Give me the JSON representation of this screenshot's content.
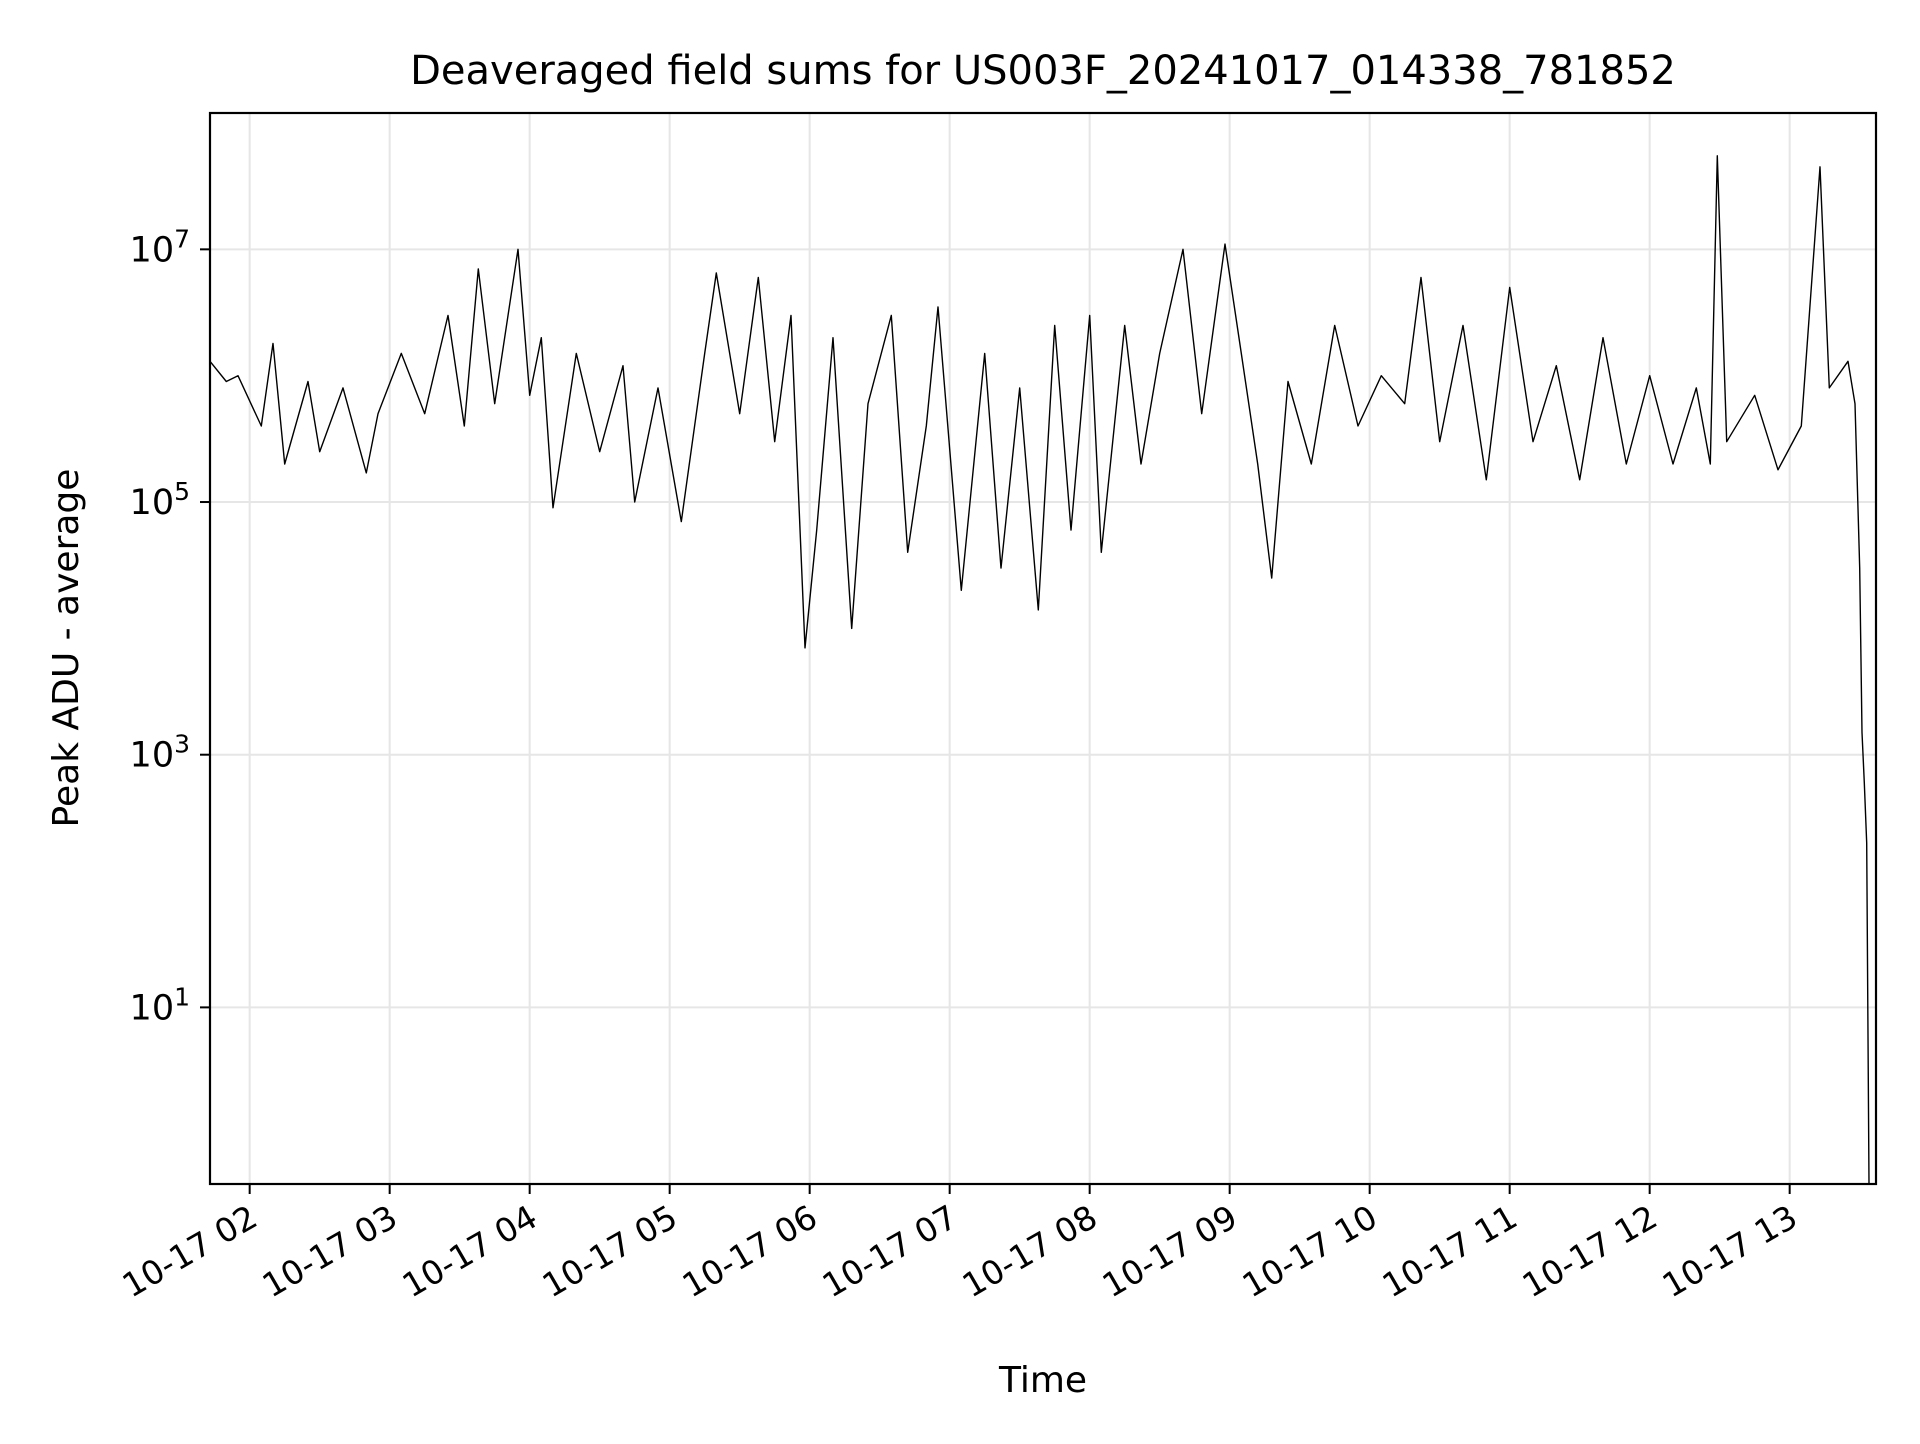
{
  "chart_data": {
    "type": "line",
    "title": "Deaveraged field sums for US003F_20241017_014338_781852",
    "xlabel": "Time",
    "ylabel": "Peak ADU - average",
    "yscale": "log",
    "ylim": [
      0.4,
      120000000
    ],
    "xlim": [
      "2024-10-17 01:43",
      "2024-10-17 13:37"
    ],
    "grid": true,
    "line_color": "#000000",
    "x_ticks": [
      {
        "value": "2024-10-17 02:00",
        "label": "10-17 02"
      },
      {
        "value": "2024-10-17 03:00",
        "label": "10-17 03"
      },
      {
        "value": "2024-10-17 04:00",
        "label": "10-17 04"
      },
      {
        "value": "2024-10-17 05:00",
        "label": "10-17 05"
      },
      {
        "value": "2024-10-17 06:00",
        "label": "10-17 06"
      },
      {
        "value": "2024-10-17 07:00",
        "label": "10-17 07"
      },
      {
        "value": "2024-10-17 08:00",
        "label": "10-17 08"
      },
      {
        "value": "2024-10-17 09:00",
        "label": "10-17 09"
      },
      {
        "value": "2024-10-17 10:00",
        "label": "10-17 10"
      },
      {
        "value": "2024-10-17 11:00",
        "label": "10-17 11"
      },
      {
        "value": "2024-10-17 12:00",
        "label": "10-17 12"
      },
      {
        "value": "2024-10-17 13:00",
        "label": "10-17 13"
      }
    ],
    "y_ticks": [
      {
        "value": 10,
        "base": "10",
        "exp": "1"
      },
      {
        "value": 1000,
        "base": "10",
        "exp": "3"
      },
      {
        "value": 100000,
        "base": "10",
        "exp": "5"
      },
      {
        "value": 10000000,
        "base": "10",
        "exp": "7"
      }
    ],
    "series": [
      {
        "points": [
          [
            "2024-10-17 01:43",
            1300000
          ],
          [
            "2024-10-17 01:50",
            900000
          ],
          [
            "2024-10-17 01:55",
            1000000
          ],
          [
            "2024-10-17 02:05",
            400000
          ],
          [
            "2024-10-17 02:10",
            1800000
          ],
          [
            "2024-10-17 02:15",
            200000
          ],
          [
            "2024-10-17 02:25",
            900000
          ],
          [
            "2024-10-17 02:30",
            250000
          ],
          [
            "2024-10-17 02:40",
            800000
          ],
          [
            "2024-10-17 02:50",
            170000
          ],
          [
            "2024-10-17 02:55",
            500000
          ],
          [
            "2024-10-17 03:05",
            1500000
          ],
          [
            "2024-10-17 03:15",
            500000
          ],
          [
            "2024-10-17 03:25",
            3000000
          ],
          [
            "2024-10-17 03:32",
            400000
          ],
          [
            "2024-10-17 03:38",
            7000000
          ],
          [
            "2024-10-17 03:45",
            600000
          ],
          [
            "2024-10-17 03:55",
            10000000
          ],
          [
            "2024-10-17 04:00",
            700000
          ],
          [
            "2024-10-17 04:05",
            2000000
          ],
          [
            "2024-10-17 04:10",
            90000
          ],
          [
            "2024-10-17 04:20",
            1500000
          ],
          [
            "2024-10-17 04:30",
            250000
          ],
          [
            "2024-10-17 04:40",
            1200000
          ],
          [
            "2024-10-17 04:45",
            100000
          ],
          [
            "2024-10-17 04:55",
            800000
          ],
          [
            "2024-10-17 05:05",
            70000
          ],
          [
            "2024-10-17 05:15",
            1500000
          ],
          [
            "2024-10-17 05:20",
            6500000
          ],
          [
            "2024-10-17 05:30",
            500000
          ],
          [
            "2024-10-17 05:38",
            6000000
          ],
          [
            "2024-10-17 05:45",
            300000
          ],
          [
            "2024-10-17 05:52",
            3000000
          ],
          [
            "2024-10-17 05:58",
            7000
          ],
          [
            "2024-10-17 06:03",
            60000
          ],
          [
            "2024-10-17 06:10",
            2000000
          ],
          [
            "2024-10-17 06:18",
            10000
          ],
          [
            "2024-10-17 06:25",
            600000
          ],
          [
            "2024-10-17 06:35",
            3000000
          ],
          [
            "2024-10-17 06:42",
            40000
          ],
          [
            "2024-10-17 06:50",
            400000
          ],
          [
            "2024-10-17 06:55",
            3500000
          ],
          [
            "2024-10-17 07:05",
            20000
          ],
          [
            "2024-10-17 07:15",
            1500000
          ],
          [
            "2024-10-17 07:22",
            30000
          ],
          [
            "2024-10-17 07:30",
            800000
          ],
          [
            "2024-10-17 07:38",
            14000
          ],
          [
            "2024-10-17 07:45",
            2500000
          ],
          [
            "2024-10-17 07:52",
            60000
          ],
          [
            "2024-10-17 08:00",
            3000000
          ],
          [
            "2024-10-17 08:05",
            40000
          ],
          [
            "2024-10-17 08:15",
            2500000
          ],
          [
            "2024-10-17 08:22",
            200000
          ],
          [
            "2024-10-17 08:30",
            1500000
          ],
          [
            "2024-10-17 08:40",
            10000000
          ],
          [
            "2024-10-17 08:48",
            500000
          ],
          [
            "2024-10-17 08:58",
            11000000
          ],
          [
            "2024-10-17 09:05",
            1500000
          ],
          [
            "2024-10-17 09:12",
            200000
          ],
          [
            "2024-10-17 09:18",
            25000
          ],
          [
            "2024-10-17 09:25",
            900000
          ],
          [
            "2024-10-17 09:35",
            200000
          ],
          [
            "2024-10-17 09:45",
            2500000
          ],
          [
            "2024-10-17 09:55",
            400000
          ],
          [
            "2024-10-17 10:05",
            1000000
          ],
          [
            "2024-10-17 10:15",
            600000
          ],
          [
            "2024-10-17 10:22",
            6000000
          ],
          [
            "2024-10-17 10:30",
            300000
          ],
          [
            "2024-10-17 10:40",
            2500000
          ],
          [
            "2024-10-17 10:50",
            150000
          ],
          [
            "2024-10-17 11:00",
            5000000
          ],
          [
            "2024-10-17 11:10",
            300000
          ],
          [
            "2024-10-17 11:20",
            1200000
          ],
          [
            "2024-10-17 11:30",
            150000
          ],
          [
            "2024-10-17 11:40",
            2000000
          ],
          [
            "2024-10-17 11:50",
            200000
          ],
          [
            "2024-10-17 12:00",
            1000000
          ],
          [
            "2024-10-17 12:10",
            200000
          ],
          [
            "2024-10-17 12:20",
            800000
          ],
          [
            "2024-10-17 12:26",
            200000
          ],
          [
            "2024-10-17 12:29",
            55000000
          ],
          [
            "2024-10-17 12:33",
            300000
          ],
          [
            "2024-10-17 12:45",
            700000
          ],
          [
            "2024-10-17 12:55",
            180000
          ],
          [
            "2024-10-17 13:05",
            400000
          ],
          [
            "2024-10-17 13:13",
            45000000
          ],
          [
            "2024-10-17 13:17",
            800000
          ],
          [
            "2024-10-17 13:25",
            1300000
          ],
          [
            "2024-10-17 13:28",
            600000
          ],
          [
            "2024-10-17 13:30",
            30000
          ],
          [
            "2024-10-17 13:31",
            1500
          ],
          [
            "2024-10-17 13:32",
            600
          ],
          [
            "2024-10-17 13:33",
            200
          ],
          [
            "2024-10-17 13:34",
            0.4
          ]
        ]
      }
    ]
  }
}
